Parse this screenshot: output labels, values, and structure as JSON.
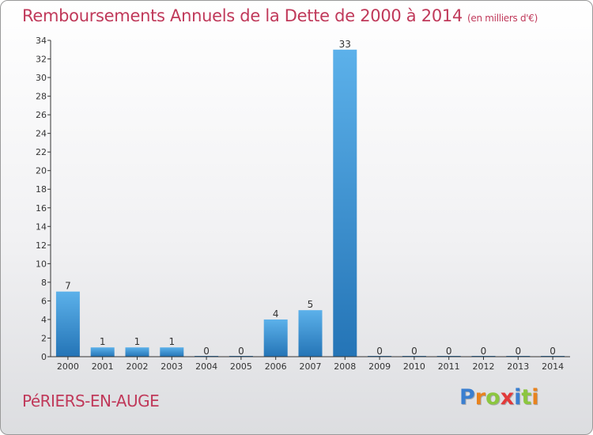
{
  "title": "Remboursements Annuels de la Dette de 2000 à 2014",
  "unit": "(en milliers d'€)",
  "commune": "PéRIERS-EN-AUGE",
  "logo": {
    "letters": [
      "P",
      "r",
      "o",
      "x",
      "i",
      "t",
      "i"
    ],
    "colors": [
      "#3a7fd0",
      "#e8831e",
      "#8cc63f",
      "#e23a3a",
      "#3a7fd0",
      "#8cc63f",
      "#e8831e"
    ]
  },
  "colors": {
    "title": "#c0395a",
    "bar_light": "#5cb1ea",
    "bar_dark": "#2474b6",
    "axis": "#333333"
  },
  "chart_data": {
    "type": "bar",
    "title": "Remboursements Annuels de la Dette de 2000 à 2014",
    "xlabel": "",
    "ylabel": "",
    "ylim": [
      0,
      34
    ],
    "yticks": [
      0,
      2,
      4,
      6,
      8,
      10,
      12,
      14,
      16,
      18,
      20,
      22,
      24,
      26,
      28,
      30,
      32,
      34
    ],
    "grid": false,
    "categories": [
      "2000",
      "2001",
      "2002",
      "2003",
      "2004",
      "2005",
      "2006",
      "2007",
      "2008",
      "2009",
      "2010",
      "2011",
      "2012",
      "2013",
      "2014"
    ],
    "values": [
      7,
      1,
      1,
      1,
      0,
      0,
      4,
      5,
      33,
      0,
      0,
      0,
      0,
      0,
      0
    ],
    "data_labels": [
      "7",
      "1",
      "1",
      "1",
      "0",
      "0",
      "4",
      "5",
      "33",
      "0",
      "0",
      "0",
      "0",
      "0",
      "0"
    ]
  }
}
